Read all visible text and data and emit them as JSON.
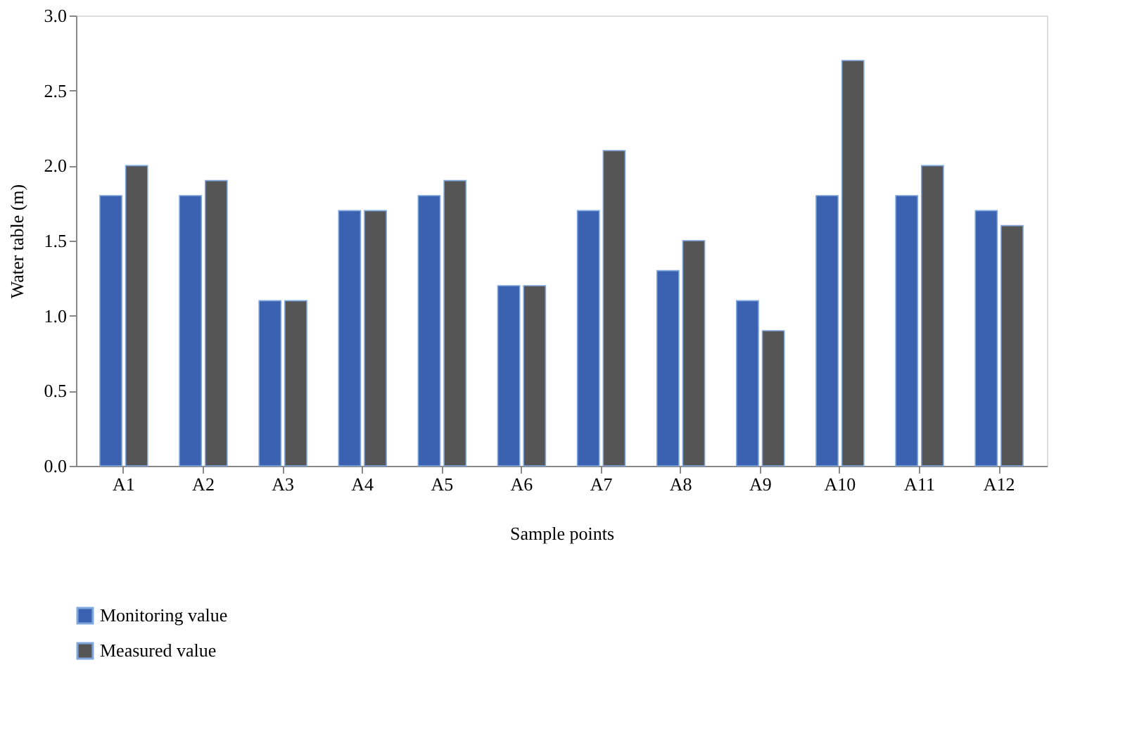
{
  "chart_data": {
    "type": "bar",
    "xlabel": "Sample points",
    "ylabel": "Water table (m)",
    "categories": [
      "A1",
      "A2",
      "A3",
      "A4",
      "A5",
      "A6",
      "A7",
      "A8",
      "A9",
      "A10",
      "A11",
      "A12"
    ],
    "series": [
      {
        "name": "Monitoring value",
        "color": "#3b62b0",
        "values": [
          1.8,
          1.8,
          1.1,
          1.7,
          1.8,
          1.2,
          1.7,
          1.3,
          1.1,
          1.8,
          1.8,
          1.7
        ]
      },
      {
        "name": "Measured value",
        "color": "#555555",
        "values": [
          2.0,
          1.9,
          1.1,
          1.7,
          1.9,
          1.2,
          2.1,
          1.5,
          0.9,
          2.7,
          2.0,
          1.6
        ]
      }
    ],
    "ylim": [
      0,
      3
    ],
    "yticks": [
      {
        "value": 0,
        "label": "0.0"
      },
      0.5,
      {
        "value": 1,
        "label": "1.0"
      },
      1.5,
      {
        "value": 2,
        "label": "2.0"
      },
      2.5,
      {
        "value": 3,
        "label": "3.0"
      }
    ],
    "grid": false,
    "legend": "bottom left"
  }
}
